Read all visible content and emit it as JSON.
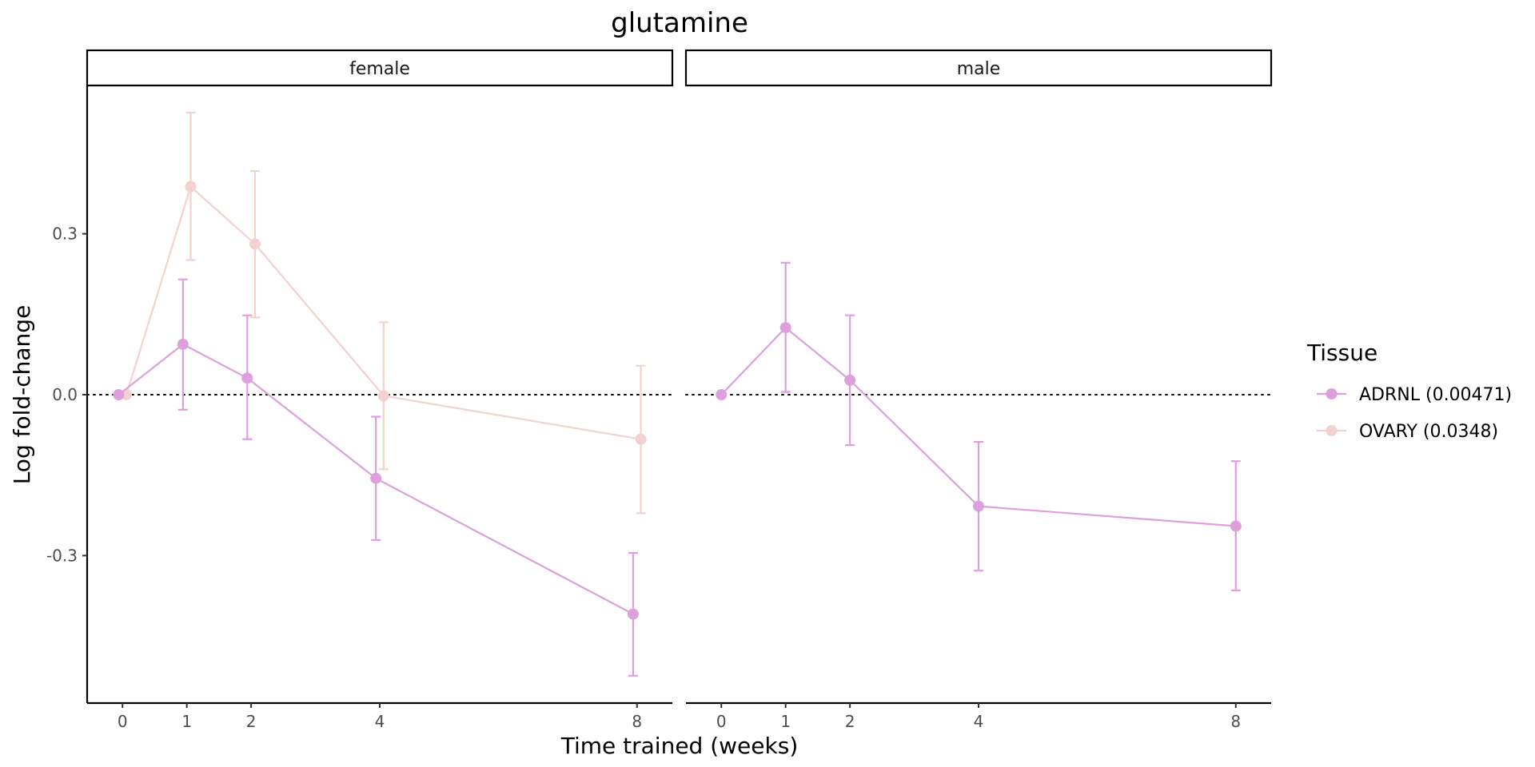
{
  "chart_data": {
    "type": "line",
    "title": "glutamine",
    "xlabel": "Time trained (weeks)",
    "ylabel": "Log fold-change",
    "x_ticks": [
      0,
      1,
      2,
      4,
      8
    ],
    "y_ticks": [
      -0.3,
      0.0,
      0.3
    ],
    "y_tick_labels": [
      "-0.3",
      "0.0",
      "0.3"
    ],
    "ylim": [
      -0.575,
      0.575
    ],
    "xlim": [
      -0.55,
      8.55
    ],
    "reference_line": {
      "y": 0,
      "style": "dotted"
    },
    "grid": false,
    "legend": {
      "title": "Tissue",
      "position": "right",
      "entries": [
        {
          "label": "ADRNL (0.00471)",
          "color": "#DDA0DD"
        },
        {
          "label": "OVARY (0.0348)",
          "color": "#F2D2CF"
        }
      ]
    },
    "panels": [
      {
        "label": "female",
        "series": [
          {
            "name": "ADRNL (0.00471)",
            "color": "#DDA0DD",
            "x": [
              0,
              1,
              2,
              4,
              8
            ],
            "y": [
              0.0,
              0.094,
              0.031,
              -0.156,
              -0.409
            ],
            "ymin": [
              null,
              -0.028,
              -0.083,
              -0.271,
              -0.524
            ],
            "ymax": [
              null,
              0.215,
              0.148,
              -0.041,
              -0.295
            ]
          },
          {
            "name": "OVARY (0.0348)",
            "color": "#F2D2CF",
            "x": [
              0,
              1,
              2,
              4,
              8
            ],
            "y": [
              0.0,
              0.388,
              0.281,
              -0.002,
              -0.083
            ],
            "ymin": [
              null,
              0.251,
              0.144,
              -0.139,
              -0.221
            ],
            "ymax": [
              null,
              0.526,
              0.417,
              0.135,
              0.054
            ]
          }
        ]
      },
      {
        "label": "male",
        "series": [
          {
            "name": "ADRNL (0.00471)",
            "color": "#DDA0DD",
            "x": [
              0,
              1,
              2,
              4,
              8
            ],
            "y": [
              0.0,
              0.125,
              0.027,
              -0.208,
              -0.245
            ],
            "ymin": [
              null,
              0.005,
              -0.094,
              -0.328,
              -0.365
            ],
            "ymax": [
              null,
              0.246,
              0.148,
              -0.088,
              -0.124
            ]
          }
        ]
      }
    ]
  }
}
